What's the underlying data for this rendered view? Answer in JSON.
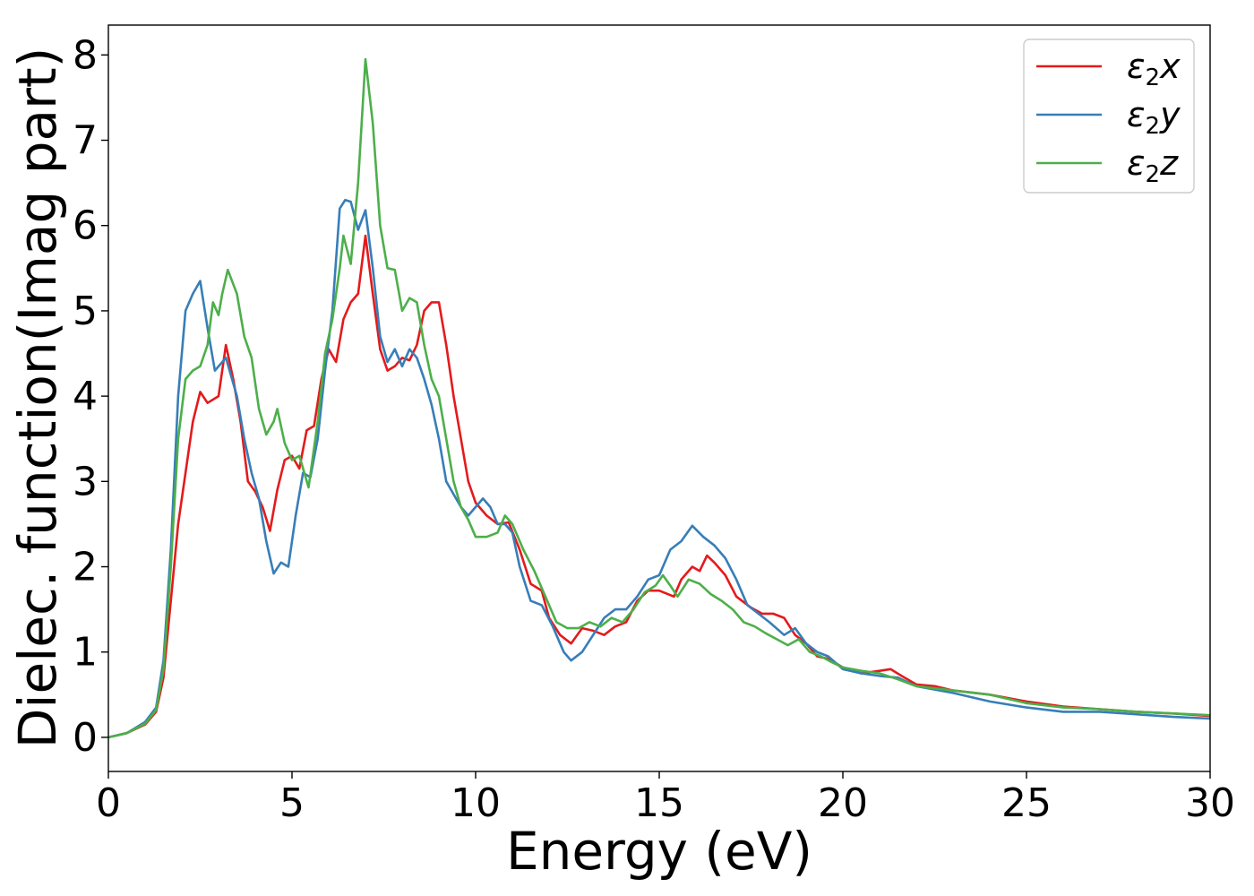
{
  "chart_data": {
    "type": "line",
    "title": "",
    "xlabel": "Energy (eV)",
    "ylabel": "Dielec. function(Imag part)",
    "xlim": [
      0,
      30
    ],
    "ylim": [
      -0.4,
      8.35
    ],
    "xticks": [
      0,
      5,
      10,
      15,
      20,
      25,
      30
    ],
    "yticks": [
      0,
      1,
      2,
      3,
      4,
      5,
      6,
      7,
      8
    ],
    "xtick_labels": [
      "0",
      "5",
      "10",
      "15",
      "20",
      "25",
      "30"
    ],
    "ytick_labels": [
      "0",
      "1",
      "2",
      "3",
      "4",
      "5",
      "6",
      "7",
      "8"
    ],
    "grid": false,
    "legend_position": "top-right",
    "series": [
      {
        "name": "ε2x",
        "legend_main": "ε",
        "legend_sub": "2",
        "legend_suffix": "x",
        "color": "#e41a1c",
        "points": [
          [
            0,
            0
          ],
          [
            0.5,
            0.05
          ],
          [
            1.0,
            0.15
          ],
          [
            1.3,
            0.3
          ],
          [
            1.5,
            0.7
          ],
          [
            1.7,
            1.6
          ],
          [
            1.9,
            2.5
          ],
          [
            2.1,
            3.1
          ],
          [
            2.3,
            3.7
          ],
          [
            2.5,
            4.05
          ],
          [
            2.7,
            3.92
          ],
          [
            3.0,
            4.0
          ],
          [
            3.2,
            4.6
          ],
          [
            3.4,
            4.2
          ],
          [
            3.6,
            3.7
          ],
          [
            3.8,
            3.0
          ],
          [
            4.0,
            2.88
          ],
          [
            4.2,
            2.7
          ],
          [
            4.4,
            2.42
          ],
          [
            4.6,
            2.9
          ],
          [
            4.8,
            3.25
          ],
          [
            5.0,
            3.3
          ],
          [
            5.2,
            3.15
          ],
          [
            5.4,
            3.6
          ],
          [
            5.6,
            3.65
          ],
          [
            5.8,
            4.2
          ],
          [
            6.0,
            4.55
          ],
          [
            6.2,
            4.4
          ],
          [
            6.4,
            4.9
          ],
          [
            6.6,
            5.1
          ],
          [
            6.8,
            5.2
          ],
          [
            7.0,
            5.88
          ],
          [
            7.2,
            5.2
          ],
          [
            7.4,
            4.55
          ],
          [
            7.6,
            4.3
          ],
          [
            7.8,
            4.35
          ],
          [
            8.0,
            4.45
          ],
          [
            8.2,
            4.42
          ],
          [
            8.4,
            4.6
          ],
          [
            8.6,
            5.0
          ],
          [
            8.8,
            5.1
          ],
          [
            9.0,
            5.1
          ],
          [
            9.2,
            4.6
          ],
          [
            9.4,
            4.0
          ],
          [
            9.6,
            3.5
          ],
          [
            9.8,
            3.0
          ],
          [
            10.0,
            2.75
          ],
          [
            10.3,
            2.6
          ],
          [
            10.6,
            2.5
          ],
          [
            10.9,
            2.52
          ],
          [
            11.2,
            2.2
          ],
          [
            11.5,
            1.8
          ],
          [
            11.8,
            1.72
          ],
          [
            12.0,
            1.4
          ],
          [
            12.3,
            1.2
          ],
          [
            12.6,
            1.1
          ],
          [
            12.9,
            1.28
          ],
          [
            13.2,
            1.25
          ],
          [
            13.5,
            1.2
          ],
          [
            13.8,
            1.3
          ],
          [
            14.1,
            1.35
          ],
          [
            14.4,
            1.6
          ],
          [
            14.7,
            1.72
          ],
          [
            15.0,
            1.72
          ],
          [
            15.4,
            1.65
          ],
          [
            15.6,
            1.85
          ],
          [
            15.9,
            2.0
          ],
          [
            16.1,
            1.95
          ],
          [
            16.3,
            2.13
          ],
          [
            16.5,
            2.05
          ],
          [
            16.8,
            1.9
          ],
          [
            17.1,
            1.65
          ],
          [
            17.5,
            1.52
          ],
          [
            17.8,
            1.45
          ],
          [
            18.1,
            1.45
          ],
          [
            18.4,
            1.4
          ],
          [
            18.7,
            1.2
          ],
          [
            19.0,
            1.1
          ],
          [
            19.3,
            0.95
          ],
          [
            19.6,
            0.92
          ],
          [
            20.0,
            0.82
          ],
          [
            20.5,
            0.75
          ],
          [
            21.0,
            0.78
          ],
          [
            21.3,
            0.8
          ],
          [
            21.6,
            0.72
          ],
          [
            22.0,
            0.62
          ],
          [
            22.5,
            0.6
          ],
          [
            23.0,
            0.55
          ],
          [
            24.0,
            0.5
          ],
          [
            25.0,
            0.42
          ],
          [
            26.0,
            0.36
          ],
          [
            27.0,
            0.33
          ],
          [
            28.0,
            0.3
          ],
          [
            29.0,
            0.28
          ],
          [
            30.0,
            0.25
          ]
        ]
      },
      {
        "name": "ε2y",
        "legend_main": "ε",
        "legend_sub": "2",
        "legend_suffix": "y",
        "color": "#377eb8",
        "points": [
          [
            0,
            0
          ],
          [
            0.5,
            0.05
          ],
          [
            1.0,
            0.18
          ],
          [
            1.3,
            0.35
          ],
          [
            1.5,
            0.9
          ],
          [
            1.7,
            2.2
          ],
          [
            1.9,
            4.0
          ],
          [
            2.1,
            5.0
          ],
          [
            2.3,
            5.2
          ],
          [
            2.5,
            5.35
          ],
          [
            2.7,
            4.8
          ],
          [
            2.9,
            4.3
          ],
          [
            3.2,
            4.45
          ],
          [
            3.5,
            4.0
          ],
          [
            3.7,
            3.5
          ],
          [
            3.9,
            3.1
          ],
          [
            4.1,
            2.8
          ],
          [
            4.3,
            2.3
          ],
          [
            4.5,
            1.92
          ],
          [
            4.7,
            2.05
          ],
          [
            4.9,
            2.0
          ],
          [
            5.1,
            2.6
          ],
          [
            5.3,
            3.1
          ],
          [
            5.5,
            3.05
          ],
          [
            5.7,
            3.5
          ],
          [
            5.9,
            4.3
          ],
          [
            6.1,
            5.0
          ],
          [
            6.3,
            6.2
          ],
          [
            6.45,
            6.3
          ],
          [
            6.6,
            6.28
          ],
          [
            6.8,
            5.95
          ],
          [
            7.0,
            6.18
          ],
          [
            7.2,
            5.5
          ],
          [
            7.4,
            4.7
          ],
          [
            7.6,
            4.4
          ],
          [
            7.8,
            4.55
          ],
          [
            8.0,
            4.35
          ],
          [
            8.2,
            4.55
          ],
          [
            8.4,
            4.45
          ],
          [
            8.6,
            4.2
          ],
          [
            8.8,
            3.9
          ],
          [
            9.0,
            3.5
          ],
          [
            9.2,
            3.0
          ],
          [
            9.4,
            2.85
          ],
          [
            9.6,
            2.7
          ],
          [
            9.8,
            2.6
          ],
          [
            10.0,
            2.7
          ],
          [
            10.2,
            2.8
          ],
          [
            10.4,
            2.7
          ],
          [
            10.6,
            2.5
          ],
          [
            10.8,
            2.5
          ],
          [
            11.0,
            2.4
          ],
          [
            11.2,
            2.0
          ],
          [
            11.5,
            1.6
          ],
          [
            11.8,
            1.55
          ],
          [
            12.1,
            1.3
          ],
          [
            12.4,
            1.0
          ],
          [
            12.6,
            0.9
          ],
          [
            12.9,
            1.0
          ],
          [
            13.2,
            1.2
          ],
          [
            13.5,
            1.4
          ],
          [
            13.8,
            1.5
          ],
          [
            14.1,
            1.5
          ],
          [
            14.4,
            1.65
          ],
          [
            14.7,
            1.85
          ],
          [
            15.0,
            1.9
          ],
          [
            15.3,
            2.2
          ],
          [
            15.6,
            2.3
          ],
          [
            15.9,
            2.48
          ],
          [
            16.2,
            2.35
          ],
          [
            16.5,
            2.25
          ],
          [
            16.8,
            2.1
          ],
          [
            17.1,
            1.85
          ],
          [
            17.4,
            1.55
          ],
          [
            17.7,
            1.45
          ],
          [
            18.0,
            1.35
          ],
          [
            18.4,
            1.2
          ],
          [
            18.7,
            1.28
          ],
          [
            19.0,
            1.1
          ],
          [
            19.3,
            1.0
          ],
          [
            19.6,
            0.95
          ],
          [
            20.0,
            0.8
          ],
          [
            20.5,
            0.75
          ],
          [
            21.0,
            0.72
          ],
          [
            21.5,
            0.7
          ],
          [
            22.0,
            0.6
          ],
          [
            23.0,
            0.52
          ],
          [
            24.0,
            0.42
          ],
          [
            25.0,
            0.35
          ],
          [
            26.0,
            0.3
          ],
          [
            27.0,
            0.3
          ],
          [
            28.0,
            0.27
          ],
          [
            29.0,
            0.24
          ],
          [
            30.0,
            0.22
          ]
        ]
      },
      {
        "name": "ε2z",
        "legend_main": "ε",
        "legend_sub": "2",
        "legend_suffix": "z",
        "color": "#4daf4a",
        "points": [
          [
            0,
            0
          ],
          [
            0.5,
            0.05
          ],
          [
            1.0,
            0.16
          ],
          [
            1.3,
            0.32
          ],
          [
            1.5,
            0.8
          ],
          [
            1.7,
            2.0
          ],
          [
            1.9,
            3.5
          ],
          [
            2.1,
            4.2
          ],
          [
            2.3,
            4.3
          ],
          [
            2.5,
            4.35
          ],
          [
            2.7,
            4.6
          ],
          [
            2.85,
            5.1
          ],
          [
            3.0,
            4.95
          ],
          [
            3.1,
            5.2
          ],
          [
            3.25,
            5.48
          ],
          [
            3.5,
            5.2
          ],
          [
            3.7,
            4.7
          ],
          [
            3.9,
            4.45
          ],
          [
            4.1,
            3.85
          ],
          [
            4.3,
            3.55
          ],
          [
            4.5,
            3.7
          ],
          [
            4.6,
            3.85
          ],
          [
            4.8,
            3.45
          ],
          [
            5.0,
            3.25
          ],
          [
            5.2,
            3.3
          ],
          [
            5.45,
            2.93
          ],
          [
            5.7,
            3.7
          ],
          [
            5.9,
            4.5
          ],
          [
            6.1,
            4.9
          ],
          [
            6.3,
            5.5
          ],
          [
            6.4,
            5.88
          ],
          [
            6.6,
            5.55
          ],
          [
            6.8,
            6.5
          ],
          [
            7.0,
            7.95
          ],
          [
            7.2,
            7.2
          ],
          [
            7.4,
            6.0
          ],
          [
            7.6,
            5.5
          ],
          [
            7.8,
            5.48
          ],
          [
            8.0,
            5.0
          ],
          [
            8.2,
            5.15
          ],
          [
            8.4,
            5.1
          ],
          [
            8.6,
            4.6
          ],
          [
            8.8,
            4.2
          ],
          [
            9.0,
            4.0
          ],
          [
            9.2,
            3.5
          ],
          [
            9.4,
            3.0
          ],
          [
            9.6,
            2.7
          ],
          [
            9.8,
            2.55
          ],
          [
            10.0,
            2.35
          ],
          [
            10.3,
            2.35
          ],
          [
            10.6,
            2.4
          ],
          [
            10.8,
            2.6
          ],
          [
            11.0,
            2.5
          ],
          [
            11.3,
            2.2
          ],
          [
            11.6,
            1.95
          ],
          [
            11.9,
            1.65
          ],
          [
            12.2,
            1.35
          ],
          [
            12.5,
            1.28
          ],
          [
            12.8,
            1.28
          ],
          [
            13.1,
            1.35
          ],
          [
            13.4,
            1.3
          ],
          [
            13.7,
            1.4
          ],
          [
            14.0,
            1.35
          ],
          [
            14.3,
            1.5
          ],
          [
            14.6,
            1.7
          ],
          [
            14.9,
            1.78
          ],
          [
            15.1,
            1.9
          ],
          [
            15.3,
            1.78
          ],
          [
            15.5,
            1.65
          ],
          [
            15.8,
            1.85
          ],
          [
            16.1,
            1.8
          ],
          [
            16.4,
            1.68
          ],
          [
            16.7,
            1.6
          ],
          [
            17.0,
            1.5
          ],
          [
            17.3,
            1.35
          ],
          [
            17.6,
            1.3
          ],
          [
            17.9,
            1.22
          ],
          [
            18.2,
            1.15
          ],
          [
            18.5,
            1.08
          ],
          [
            18.8,
            1.15
          ],
          [
            19.1,
            1.0
          ],
          [
            19.4,
            0.95
          ],
          [
            19.7,
            0.88
          ],
          [
            20.0,
            0.82
          ],
          [
            20.5,
            0.78
          ],
          [
            21.0,
            0.75
          ],
          [
            21.5,
            0.68
          ],
          [
            22.0,
            0.6
          ],
          [
            23.0,
            0.55
          ],
          [
            24.0,
            0.5
          ],
          [
            25.0,
            0.4
          ],
          [
            26.0,
            0.35
          ],
          [
            27.0,
            0.33
          ],
          [
            28.0,
            0.3
          ],
          [
            29.0,
            0.28
          ],
          [
            30.0,
            0.26
          ]
        ]
      }
    ]
  }
}
